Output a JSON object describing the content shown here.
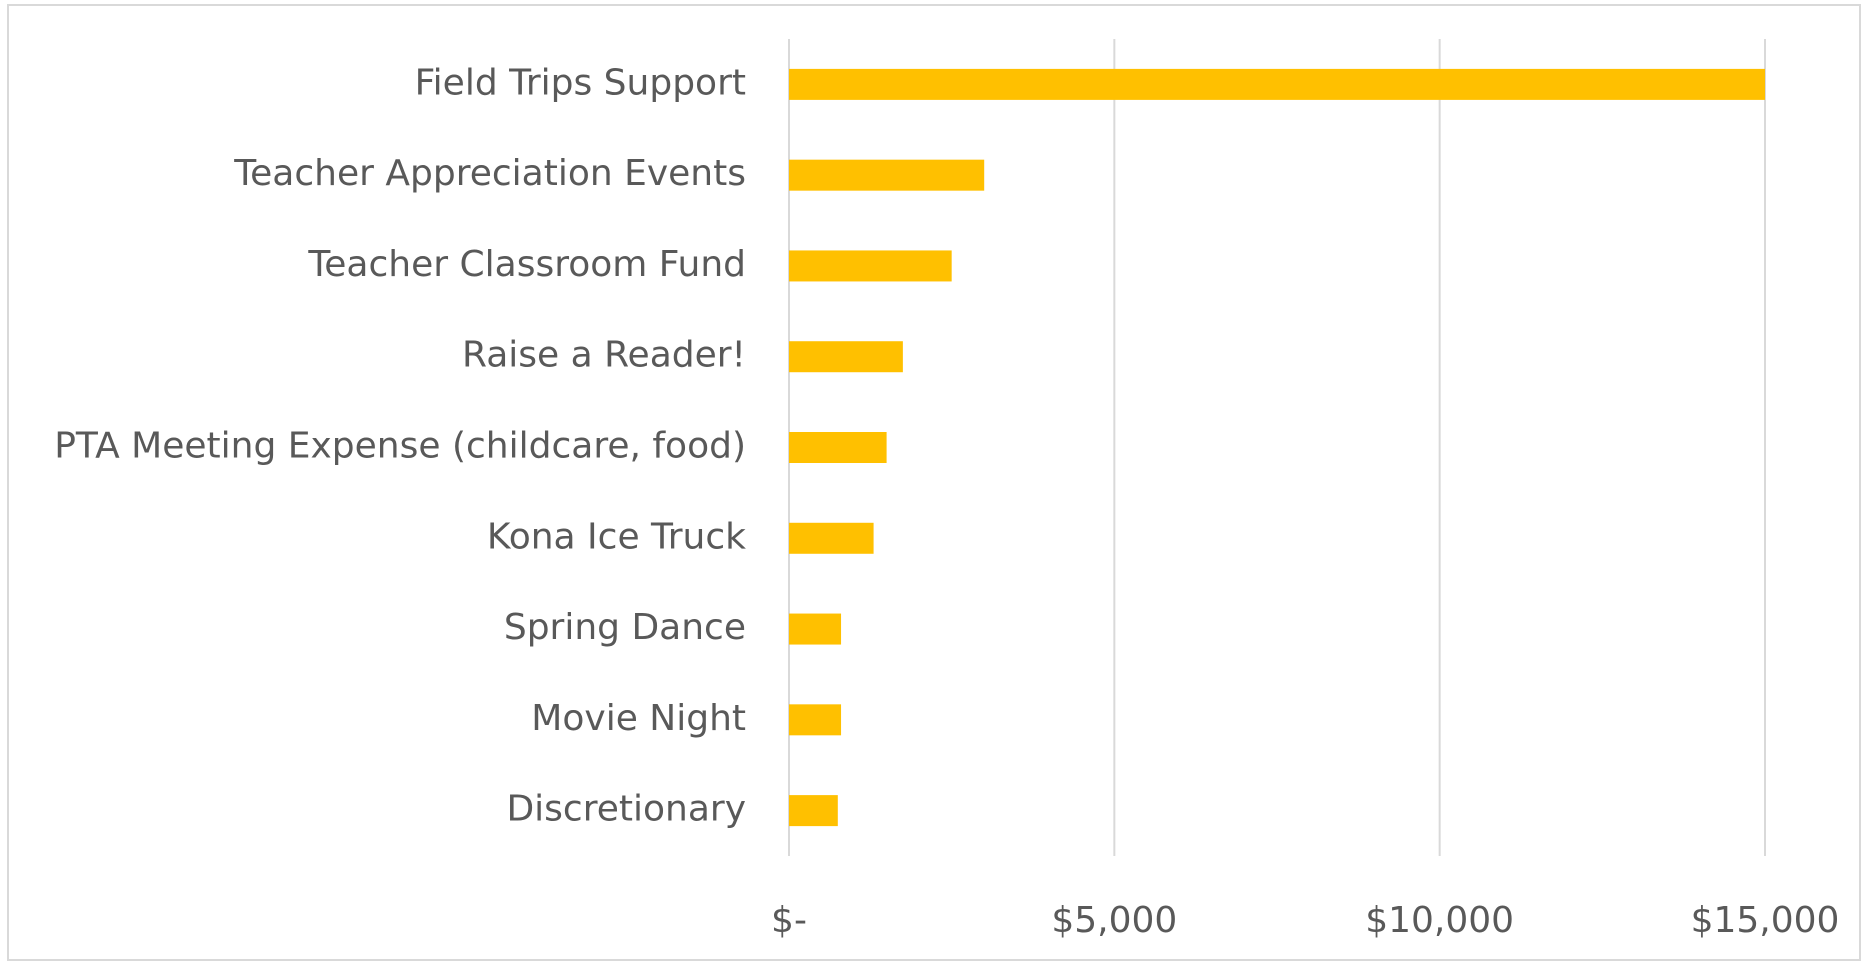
{
  "chart_data": {
    "type": "bar",
    "orientation": "horizontal",
    "categories": [
      "Field Trips Support",
      "Teacher Appreciation Events",
      "Teacher Classroom Fund",
      "Raise a Reader!",
      "PTA Meeting Expense (childcare, food)",
      "Kona Ice Truck",
      "Spring Dance",
      "Movie Night",
      "Discretionary"
    ],
    "values": [
      15000,
      3000,
      2500,
      1750,
      1500,
      1300,
      800,
      800,
      750
    ],
    "color": "#ffc000",
    "xlim": [
      0,
      15000
    ],
    "xticks": [
      {
        "value": 0,
        "label": "$-"
      },
      {
        "value": 5000,
        "label": "$5,000"
      },
      {
        "value": 10000,
        "label": "$10,000"
      },
      {
        "value": 15000,
        "label": "$15,000"
      }
    ],
    "grid": true
  }
}
